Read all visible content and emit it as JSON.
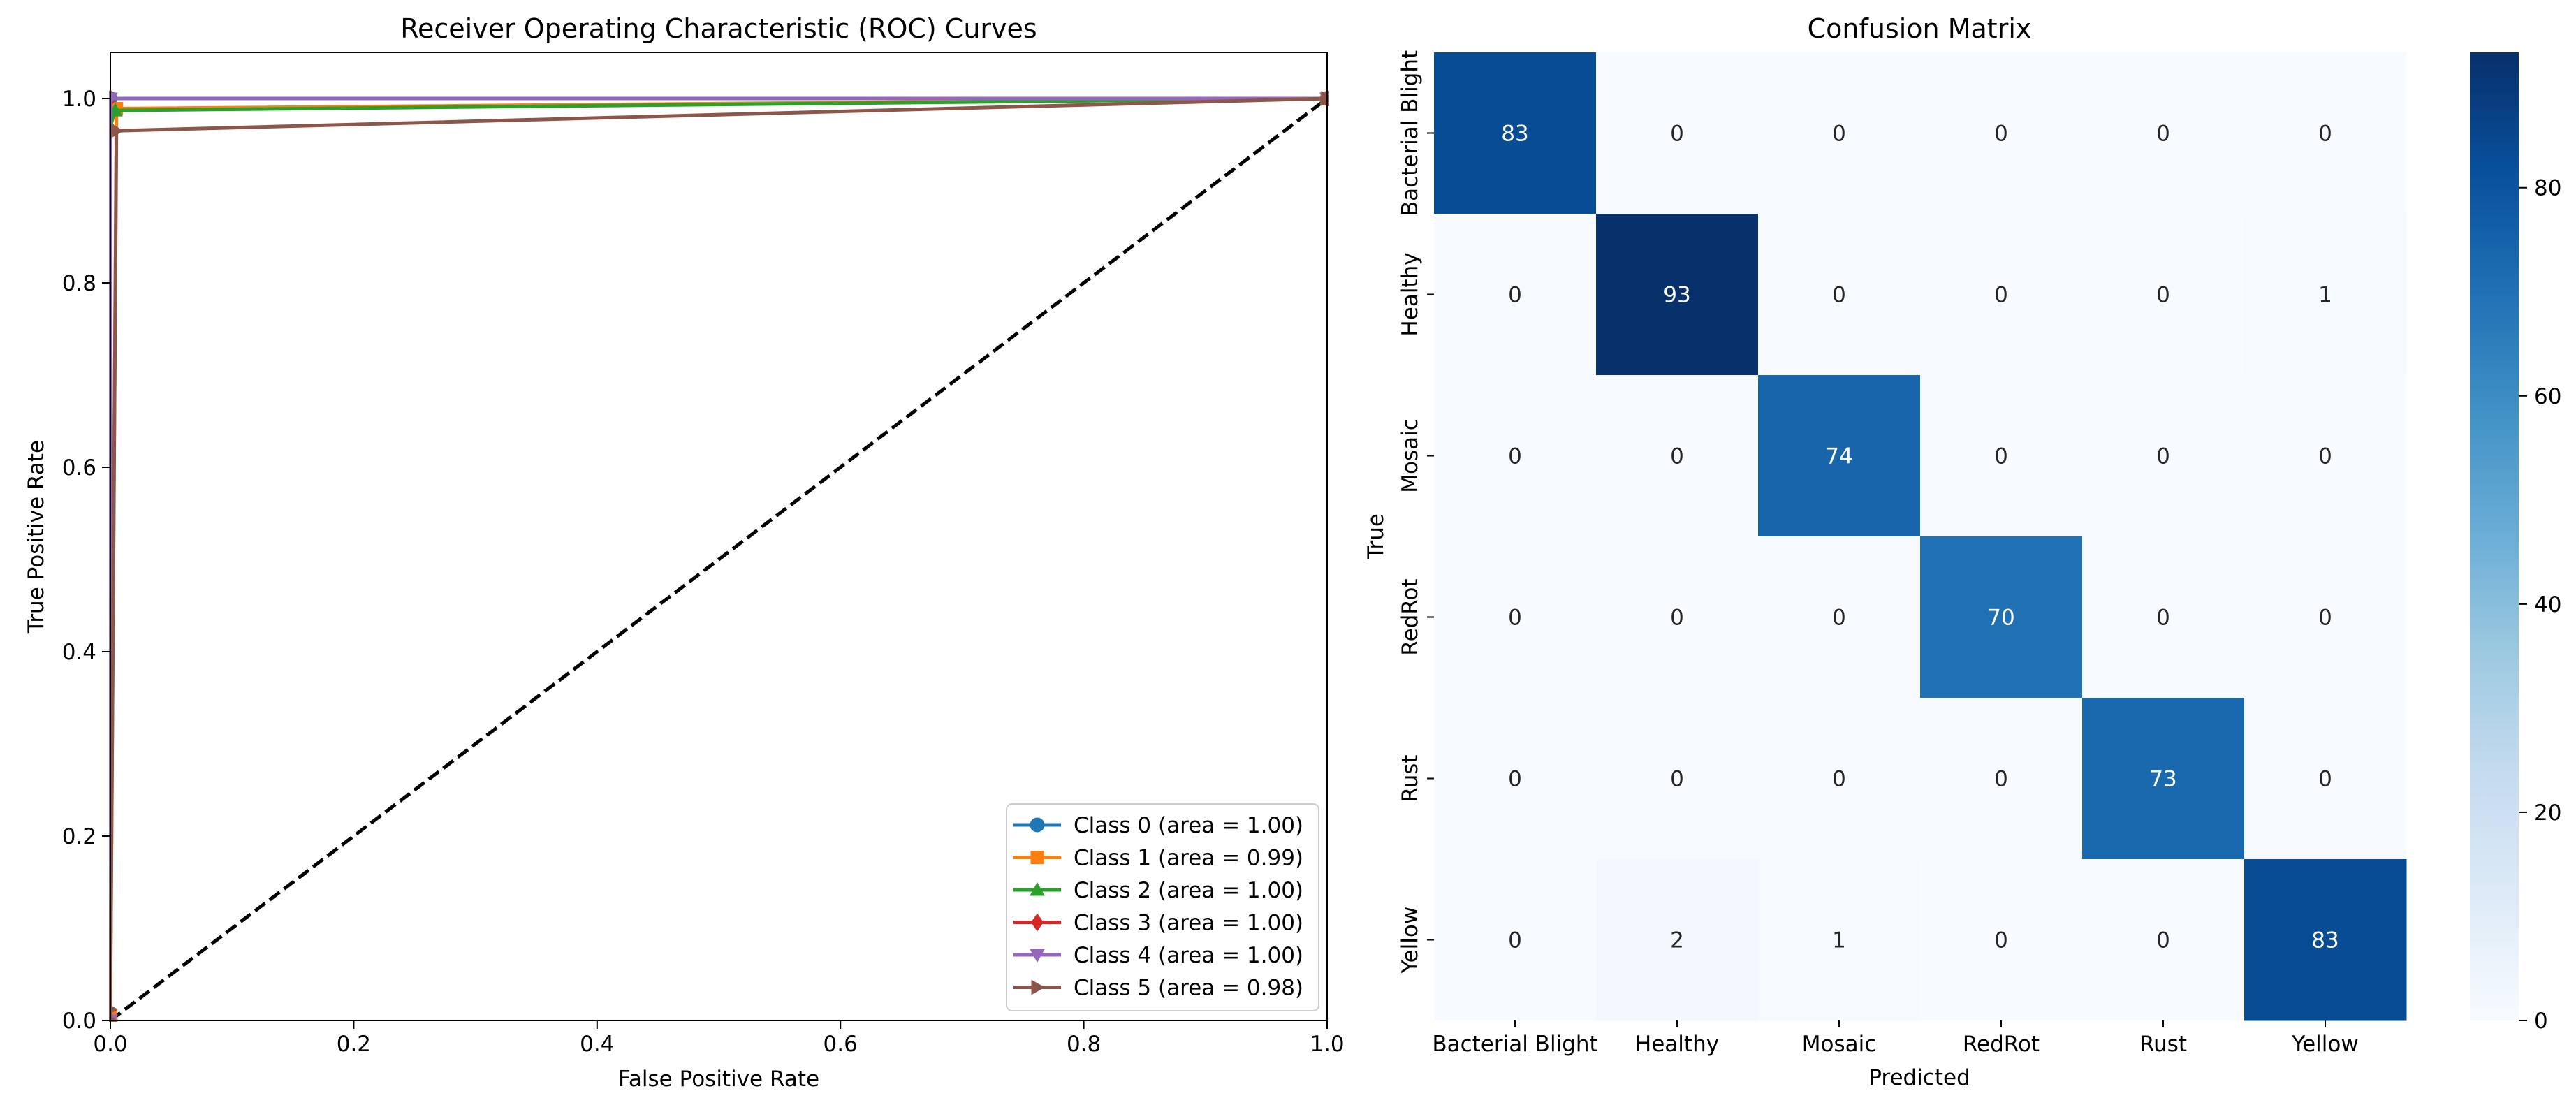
{
  "chart_data": [
    {
      "type": "line",
      "title": "Receiver Operating Characteristic (ROC) Curves",
      "xlabel": "False Positive Rate",
      "ylabel": "True Positive Rate",
      "xlim": [
        0,
        1
      ],
      "ylim": [
        0,
        1.05
      ],
      "xticks": [
        "0.0",
        "0.2",
        "0.4",
        "0.6",
        "0.8",
        "1.0"
      ],
      "yticks": [
        "0.0",
        "0.2",
        "0.4",
        "0.6",
        "0.8",
        "1.0"
      ],
      "grid": false,
      "legend_position": "lower-right",
      "series": [
        {
          "name": "Class 0 (area = 1.00)",
          "color": "#1f77b4",
          "marker": "circle",
          "x": [
            0,
            0,
            1
          ],
          "y": [
            0,
            1.0,
            1.0
          ]
        },
        {
          "name": "Class 1 (area = 0.99)",
          "color": "#ff7f0e",
          "marker": "square",
          "x": [
            0,
            0,
            0.005,
            1
          ],
          "y": [
            0,
            0.005,
            0.989,
            1.0
          ]
        },
        {
          "name": "Class 2 (area = 1.00)",
          "color": "#2ca02c",
          "marker": "triangle-up",
          "x": [
            0,
            0,
            0.004,
            1
          ],
          "y": [
            0,
            0.97,
            0.987,
            1.0
          ]
        },
        {
          "name": "Class 3 (area = 1.00)",
          "color": "#d62728",
          "marker": "diamond",
          "x": [
            0,
            0,
            1
          ],
          "y": [
            0,
            1.0,
            1.0
          ]
        },
        {
          "name": "Class 4 (area = 1.00)",
          "color": "#9467bd",
          "marker": "triangle-down",
          "x": [
            0,
            0,
            1
          ],
          "y": [
            0,
            1.0,
            1.0
          ]
        },
        {
          "name": "Class 5 (area = 0.98)",
          "color": "#8c564b",
          "marker": "triangle-right",
          "x": [
            0,
            0,
            0.005,
            1
          ],
          "y": [
            0,
            0.012,
            0.965,
            1.0
          ]
        }
      ],
      "reference_line": {
        "x": [
          0,
          1
        ],
        "y": [
          0,
          1
        ],
        "style": "dashed",
        "color": "#000000"
      }
    },
    {
      "type": "heatmap",
      "title": "Confusion Matrix",
      "xlabel": "Predicted",
      "ylabel": "True",
      "x_labels": [
        "Bacterial Blight",
        "Healthy",
        "Mosaic",
        "RedRot",
        "Rust",
        "Yellow"
      ],
      "y_labels": [
        "Bacterial Blight",
        "Healthy",
        "Mosaic",
        "RedRot",
        "Rust",
        "Yellow"
      ],
      "values": [
        [
          83,
          0,
          0,
          0,
          0,
          0
        ],
        [
          0,
          93,
          0,
          0,
          0,
          1
        ],
        [
          0,
          0,
          74,
          0,
          0,
          0
        ],
        [
          0,
          0,
          0,
          70,
          0,
          0
        ],
        [
          0,
          0,
          0,
          0,
          73,
          0
        ],
        [
          0,
          2,
          1,
          0,
          0,
          83
        ]
      ],
      "colormap": "Blues",
      "vmin": 0,
      "vmax": 93,
      "colorbar_ticks": [
        "0",
        "20",
        "40",
        "60",
        "80"
      ]
    }
  ]
}
